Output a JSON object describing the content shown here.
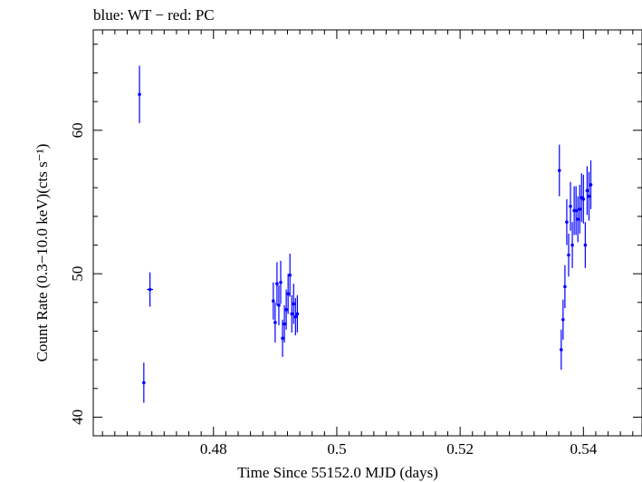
{
  "chart_data": {
    "type": "scatter",
    "title": "blue: WT − red: PC",
    "xlabel": "Time Since 55152.0 MJD (days)",
    "ylabel": "Count Rate (0.3−10.0 keV)(cts s⁻¹)",
    "xlim": [
      0.4605,
      0.5495
    ],
    "ylim": [
      38.7,
      67.0
    ],
    "xticks": [
      0.48,
      0.5,
      0.52,
      0.54
    ],
    "xtick_labels": [
      "0.48",
      "0.5",
      "0.52",
      "0.54"
    ],
    "yticks": [
      40,
      50,
      60
    ],
    "ytick_labels": [
      "40",
      "50",
      "60"
    ],
    "series": [
      {
        "name": "WT",
        "color": "#0000ff",
        "points": [
          {
            "x": 0.468,
            "y": 62.5,
            "yerr": 2.0,
            "xerr": 0.0001
          },
          {
            "x": 0.4687,
            "y": 42.4,
            "yerr": 1.4,
            "xerr": 0.0001
          },
          {
            "x": 0.4697,
            "y": 48.9,
            "yerr": 1.2,
            "xerr": 0.0005
          },
          {
            "x": 0.4897,
            "y": 48.1,
            "yerr": 1.3,
            "xerr": 0.0001
          },
          {
            "x": 0.49,
            "y": 46.6,
            "yerr": 1.4,
            "xerr": 0.0001
          },
          {
            "x": 0.4903,
            "y": 49.3,
            "yerr": 1.5,
            "xerr": 0.0001
          },
          {
            "x": 0.4906,
            "y": 47.8,
            "yerr": 1.4,
            "xerr": 0.0001
          },
          {
            "x": 0.4909,
            "y": 49.4,
            "yerr": 1.5,
            "xerr": 0.0001
          },
          {
            "x": 0.4912,
            "y": 45.5,
            "yerr": 1.3,
            "xerr": 0.0001
          },
          {
            "x": 0.4915,
            "y": 46.5,
            "yerr": 1.3,
            "xerr": 0.0001
          },
          {
            "x": 0.4918,
            "y": 47.5,
            "yerr": 1.4,
            "xerr": 0.0001
          },
          {
            "x": 0.4921,
            "y": 48.6,
            "yerr": 1.4,
            "xerr": 0.0001
          },
          {
            "x": 0.4924,
            "y": 49.9,
            "yerr": 1.5,
            "xerr": 0.0001
          },
          {
            "x": 0.4927,
            "y": 47.2,
            "yerr": 1.3,
            "xerr": 0.0001
          },
          {
            "x": 0.493,
            "y": 47.9,
            "yerr": 1.4,
            "xerr": 0.0001
          },
          {
            "x": 0.4933,
            "y": 47.0,
            "yerr": 1.3,
            "xerr": 0.0001
          },
          {
            "x": 0.4936,
            "y": 47.2,
            "yerr": 1.3,
            "xerr": 0.0001
          },
          {
            "x": 0.5361,
            "y": 57.2,
            "yerr": 1.8,
            "xerr": 0.0001
          },
          {
            "x": 0.5364,
            "y": 44.7,
            "yerr": 1.4,
            "xerr": 0.0001
          },
          {
            "x": 0.5367,
            "y": 46.8,
            "yerr": 1.4,
            "xerr": 0.0001
          },
          {
            "x": 0.537,
            "y": 49.1,
            "yerr": 1.5,
            "xerr": 0.0001
          },
          {
            "x": 0.5373,
            "y": 53.6,
            "yerr": 1.6,
            "xerr": 0.0001
          },
          {
            "x": 0.5376,
            "y": 51.3,
            "yerr": 1.5,
            "xerr": 0.0001
          },
          {
            "x": 0.5379,
            "y": 54.7,
            "yerr": 1.7,
            "xerr": 0.0001
          },
          {
            "x": 0.5382,
            "y": 52.0,
            "yerr": 1.6,
            "xerr": 0.0001
          },
          {
            "x": 0.5385,
            "y": 54.4,
            "yerr": 1.7,
            "xerr": 0.0001
          },
          {
            "x": 0.5388,
            "y": 54.4,
            "yerr": 1.7,
            "xerr": 0.0001
          },
          {
            "x": 0.5391,
            "y": 53.8,
            "yerr": 1.6,
            "xerr": 0.0001
          },
          {
            "x": 0.5394,
            "y": 54.5,
            "yerr": 1.7,
            "xerr": 0.0001
          },
          {
            "x": 0.5397,
            "y": 55.3,
            "yerr": 1.7,
            "xerr": 0.0001
          },
          {
            "x": 0.54,
            "y": 55.2,
            "yerr": 1.7,
            "xerr": 0.0001
          },
          {
            "x": 0.5403,
            "y": 52.0,
            "yerr": 1.6,
            "xerr": 0.0001
          },
          {
            "x": 0.5406,
            "y": 55.8,
            "yerr": 1.7,
            "xerr": 0.0001
          },
          {
            "x": 0.5409,
            "y": 55.4,
            "yerr": 1.7,
            "xerr": 0.0001
          },
          {
            "x": 0.5412,
            "y": 56.2,
            "yerr": 1.7,
            "xerr": 0.0001
          }
        ]
      }
    ]
  }
}
